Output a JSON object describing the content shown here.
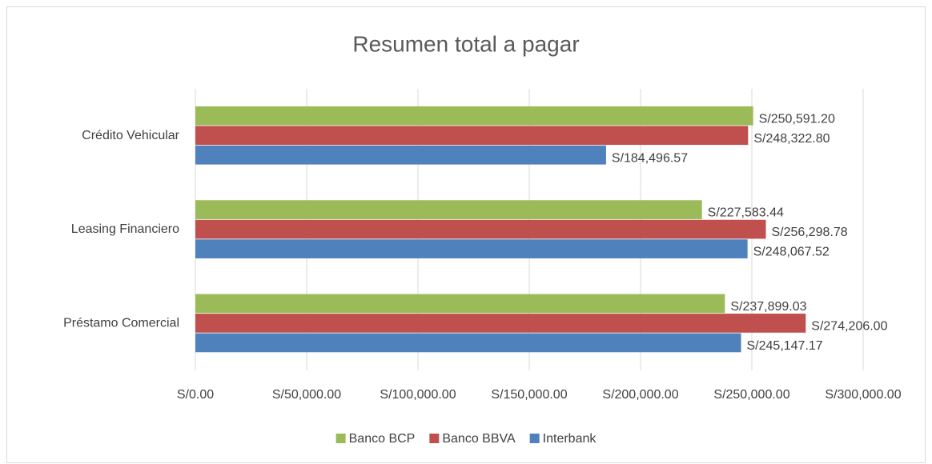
{
  "chart_data": {
    "type": "hbar",
    "title": "Resumen total a pagar",
    "categories": [
      "Crédito Vehicular",
      "Leasing Financiero",
      "Préstamo Comercial"
    ],
    "series": [
      {
        "name": "Banco BCP",
        "color": "#9bbb59",
        "values": [
          250591.2,
          227583.44,
          237899.03
        ],
        "value_labels": [
          "S/250,591.20",
          "S/227,583.44",
          "S/237,899.03"
        ]
      },
      {
        "name": "Banco BBVA",
        "color": "#c0504d",
        "values": [
          248322.8,
          256298.78,
          274206.0
        ],
        "value_labels": [
          "S/248,322.80",
          "S/256,298.78",
          "S/274,206.00"
        ]
      },
      {
        "name": "Interbank",
        "color": "#4f81bd",
        "values": [
          184496.57,
          248067.52,
          245147.17
        ],
        "value_labels": [
          "S/184,496.57",
          "S/248,067.52",
          "S/245,147.17"
        ]
      }
    ],
    "xlim": [
      0,
      300000
    ],
    "xticks": [
      {
        "value": 0,
        "label": "S/0.00"
      },
      {
        "value": 50000,
        "label": "S/50,000.00"
      },
      {
        "value": 100000,
        "label": "S/100,000.00"
      },
      {
        "value": 150000,
        "label": "S/150,000.00"
      },
      {
        "value": 200000,
        "label": "S/200,000.00"
      },
      {
        "value": 250000,
        "label": "S/250,000.00"
      },
      {
        "value": 300000,
        "label": "S/300,000.00"
      }
    ],
    "grid": true,
    "legend": "bottom"
  }
}
